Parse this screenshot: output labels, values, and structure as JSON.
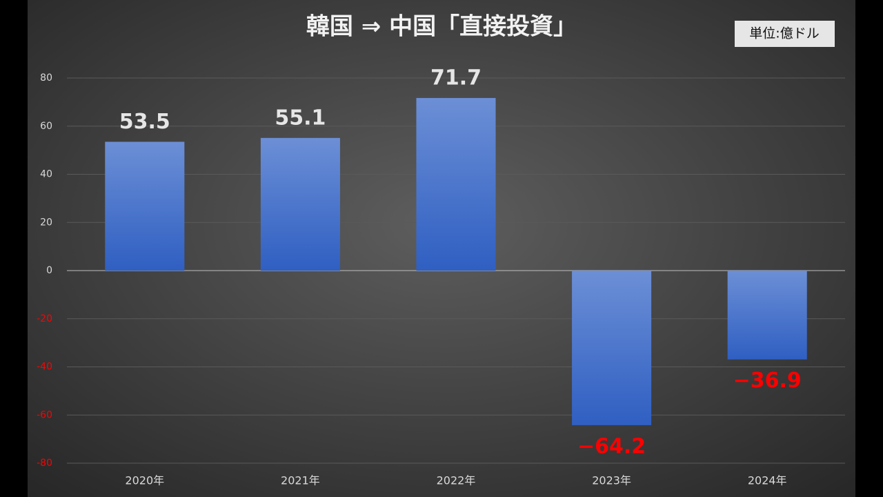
{
  "chart_data": {
    "type": "bar",
    "title": "韓国 ⇒ 中国「直接投資」",
    "unit_note": "単位:億ドル",
    "categories": [
      "2020年",
      "2021年",
      "2022年",
      "2023年",
      "2024年"
    ],
    "values": [
      53.5,
      55.1,
      71.7,
      -64.2,
      -36.9
    ],
    "value_labels": [
      "53.5",
      "55.1",
      "71.7",
      "−64.2",
      "−36.9"
    ],
    "color": "#4a74cf",
    "negative_label_color": "#ff0000",
    "ylim": [
      -80,
      80
    ],
    "yticks": [
      80,
      60,
      40,
      20,
      0,
      -20,
      -40,
      -60,
      -80
    ],
    "grid": true
  }
}
